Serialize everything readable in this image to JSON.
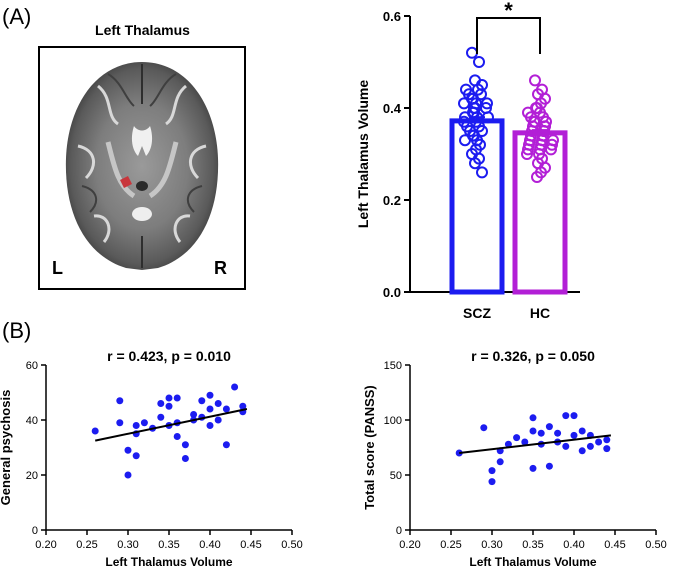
{
  "panel_a": {
    "label": "(A)",
    "brain": {
      "title": "Left Thalamus",
      "left_marker": "L",
      "right_marker": "R",
      "highlight_color": "#c8363c"
    }
  },
  "panel_b": {
    "label": "(B)"
  },
  "chart_data": [
    {
      "type": "bar",
      "title": "",
      "ylabel": "Left Thalamus Volume",
      "xlabel": "",
      "categories": [
        "SCZ",
        "HC"
      ],
      "values": [
        0.372,
        0.346
      ],
      "error": [
        0.008,
        0.006
      ],
      "colors": [
        "#1c1cf0",
        "#b21fd6"
      ],
      "ylim": [
        0.0,
        0.6
      ],
      "yticks": [
        "0.0",
        "0.2",
        "0.4",
        "0.6"
      ],
      "yticks_values": [
        0.0,
        0.2,
        0.4,
        0.6
      ],
      "significance": "*",
      "points": [
        [
          0.52,
          0.5,
          0.46,
          0.45,
          0.44,
          0.44,
          0.43,
          0.43,
          0.42,
          0.42,
          0.41,
          0.41,
          0.41,
          0.4,
          0.4,
          0.4,
          0.39,
          0.39,
          0.38,
          0.38,
          0.38,
          0.37,
          0.37,
          0.36,
          0.36,
          0.35,
          0.35,
          0.34,
          0.34,
          0.33,
          0.33,
          0.32,
          0.31,
          0.3,
          0.29,
          0.28,
          0.26
        ],
        [
          0.46,
          0.44,
          0.43,
          0.42,
          0.41,
          0.4,
          0.4,
          0.39,
          0.39,
          0.38,
          0.38,
          0.37,
          0.37,
          0.37,
          0.36,
          0.36,
          0.36,
          0.35,
          0.35,
          0.35,
          0.34,
          0.34,
          0.34,
          0.33,
          0.33,
          0.33,
          0.32,
          0.32,
          0.32,
          0.31,
          0.31,
          0.31,
          0.3,
          0.3,
          0.29,
          0.28,
          0.27,
          0.26,
          0.25
        ]
      ]
    },
    {
      "type": "scatter",
      "title": "r = 0.423, p = 0.010",
      "xlabel": "Left Thalamus Volume",
      "ylabel": "General  psychosis",
      "xlim": [
        0.2,
        0.5
      ],
      "ylim": [
        0,
        60
      ],
      "xticks": [
        "0.20",
        "0.25",
        "0.30",
        "0.35",
        "0.40",
        "0.45",
        "0.50"
      ],
      "xticks_values": [
        0.2,
        0.25,
        0.3,
        0.35,
        0.4,
        0.45,
        0.5
      ],
      "yticks": [
        "0",
        "20",
        "40",
        "60"
      ],
      "yticks_values": [
        0,
        20,
        40,
        60
      ],
      "point_color": "#1c1cf0",
      "x": [
        0.26,
        0.29,
        0.29,
        0.3,
        0.3,
        0.31,
        0.31,
        0.31,
        0.32,
        0.33,
        0.34,
        0.34,
        0.35,
        0.35,
        0.35,
        0.36,
        0.36,
        0.36,
        0.37,
        0.37,
        0.38,
        0.38,
        0.39,
        0.39,
        0.4,
        0.4,
        0.4,
        0.41,
        0.41,
        0.42,
        0.42,
        0.43,
        0.44,
        0.44
      ],
      "y": [
        36,
        47,
        39,
        20,
        29,
        27,
        35,
        38,
        39,
        37,
        41,
        46,
        45,
        48,
        38,
        39,
        34,
        48,
        26,
        31,
        40,
        42,
        41,
        47,
        38,
        44,
        49,
        46,
        40,
        31,
        44,
        52,
        43,
        45
      ],
      "fit": {
        "x": [
          0.26,
          0.445
        ],
        "y": [
          32.5,
          44.0
        ]
      }
    },
    {
      "type": "scatter",
      "title": "r = 0.326, p = 0.050",
      "xlabel": "Left Thalamus Volume",
      "ylabel": "Total score (PANSS)",
      "xlim": [
        0.2,
        0.5
      ],
      "ylim": [
        0,
        150
      ],
      "xticks": [
        "0.20",
        "0.25",
        "0.30",
        "0.35",
        "0.40",
        "0.45",
        "0.50"
      ],
      "xticks_values": [
        0.2,
        0.25,
        0.3,
        0.35,
        0.4,
        0.45,
        0.5
      ],
      "yticks": [
        "0",
        "50",
        "100",
        "150"
      ],
      "yticks_values": [
        0,
        50,
        100,
        150
      ],
      "point_color": "#1c1cf0",
      "x": [
        0.26,
        0.29,
        0.3,
        0.3,
        0.31,
        0.31,
        0.32,
        0.33,
        0.34,
        0.35,
        0.35,
        0.35,
        0.36,
        0.36,
        0.37,
        0.37,
        0.38,
        0.38,
        0.39,
        0.39,
        0.4,
        0.4,
        0.41,
        0.41,
        0.42,
        0.42,
        0.43,
        0.44,
        0.44
      ],
      "y": [
        70,
        93,
        44,
        54,
        62,
        72,
        78,
        84,
        80,
        56,
        102,
        90,
        78,
        88,
        58,
        94,
        80,
        88,
        76,
        104,
        86,
        104,
        90,
        72,
        76,
        86,
        80,
        74,
        82
      ],
      "fit": {
        "x": [
          0.26,
          0.445
        ],
        "y": [
          70,
          86
        ]
      }
    }
  ]
}
